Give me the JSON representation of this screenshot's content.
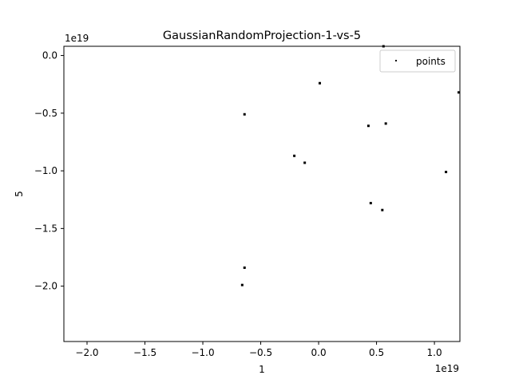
{
  "chart_data": {
    "type": "scatter",
    "title": "GaussianRandomProjection-1-vs-5",
    "xlabel": "1",
    "ylabel": "5",
    "x_offset_label": "1e19",
    "y_offset_label": "1e19",
    "xlim": [
      -2.2,
      1.22
    ],
    "ylim": [
      -2.48,
      0.08
    ],
    "x_ticks": [
      -2.0,
      -1.5,
      -1.0,
      -0.5,
      0.0,
      0.5,
      1.0
    ],
    "x_tick_labels": [
      "−2.0",
      "−1.5",
      "−1.0",
      "−0.5",
      "0.0",
      "0.5",
      "1.0"
    ],
    "y_ticks": [
      0.0,
      -0.5,
      -1.0,
      -1.5,
      -2.0
    ],
    "y_tick_labels": [
      "0.0",
      "−0.5",
      "−1.0",
      "−1.5",
      "−2.0"
    ],
    "legend": {
      "placement": "upper right",
      "entries": [
        "points"
      ]
    },
    "grid": false,
    "series": [
      {
        "name": "points",
        "color": "#000000",
        "x": [
          0.56,
          0.01,
          1.21,
          -0.64,
          0.43,
          0.58,
          -0.21,
          -0.12,
          1.1,
          0.45,
          0.55,
          -0.64,
          -0.66
        ],
        "y": [
          0.08,
          -0.24,
          -0.32,
          -0.51,
          -0.61,
          -0.59,
          -0.87,
          -0.93,
          -1.01,
          -1.28,
          -1.34,
          -1.84,
          -1.99
        ]
      }
    ]
  }
}
